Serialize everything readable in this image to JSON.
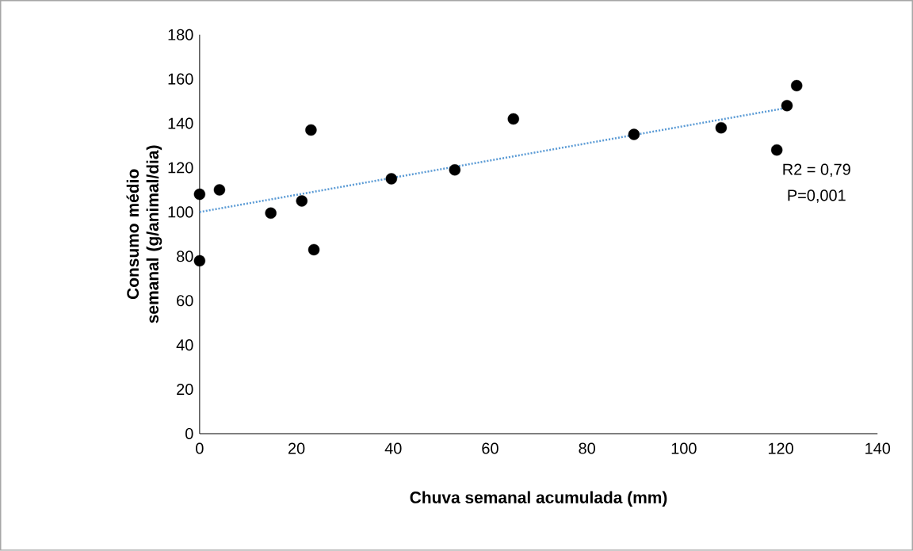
{
  "chart_data": {
    "type": "scatter",
    "xlabel": "Chuva semanal acumulada (mm)",
    "ylabel": "Consumo médio semanal (g/animal/dia)",
    "xlim": [
      0,
      140
    ],
    "xticks": [
      0,
      20,
      40,
      60,
      80,
      100,
      120,
      140
    ],
    "ylim": [
      0,
      180
    ],
    "yticks": [
      0,
      20,
      40,
      60,
      80,
      100,
      120,
      140,
      160,
      180
    ],
    "grid": false,
    "series": [
      {
        "color": "#000000",
        "marker": "circle",
        "x": [
          0,
          0,
          4.1,
          14.7,
          21.1,
          23.0,
          23.6,
          39.6,
          52.7,
          64.8,
          89.7,
          107.7,
          119.2,
          121.3,
          123.3
        ],
        "values": [
          108,
          78,
          110,
          99.5,
          105,
          137,
          83,
          115,
          119,
          142,
          135,
          138,
          128,
          148,
          157
        ]
      },
      {
        "type": "line",
        "color": "#5b9bd5",
        "marker": "none",
        "line_style": "dotted",
        "x": [
          0,
          121.3
        ],
        "values": [
          100,
          147
        ]
      }
    ],
    "annotations": [
      "R2 = 0,79",
      "P=0,001"
    ]
  }
}
